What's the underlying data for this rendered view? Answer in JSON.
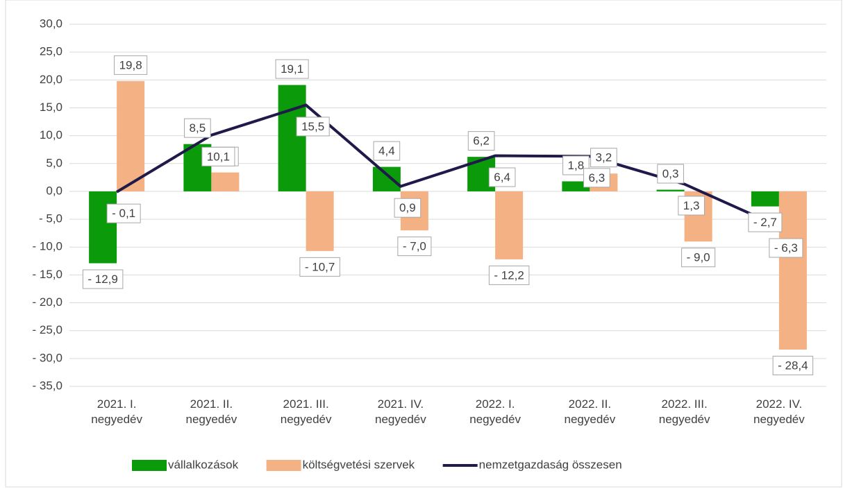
{
  "chart_data": {
    "type": "bar",
    "categories": [
      "2021. I. negyedév",
      "2021. II. negyedév",
      "2021. III. negyedév",
      "2021. IV. negyedév",
      "2022. I. negyedév",
      "2022. II. negyedév",
      "2022. III. negyedév",
      "2022. IV. negyedév"
    ],
    "series": [
      {
        "name": "vállalkozások",
        "type": "bar",
        "color": "#0a9a0a",
        "values": [
          -12.9,
          8.5,
          19.1,
          4.4,
          6.2,
          1.8,
          0.3,
          -2.7
        ],
        "value_labels": [
          "- 12,9",
          "8,5",
          "19,1",
          "4,4",
          "6,2",
          "1,8",
          "0,3",
          "- 2,7"
        ]
      },
      {
        "name": "költségvetési szervek",
        "type": "bar",
        "color": "#f4b183",
        "values": [
          19.8,
          3.4,
          -10.7,
          -7.0,
          -12.2,
          3.2,
          -9.0,
          -28.4
        ],
        "value_labels": [
          "19,8",
          "3,4",
          "- 10,7",
          "- 7,0",
          "- 12,2",
          "3,2",
          "- 9,0",
          "- 28,4"
        ]
      },
      {
        "name": "nemzetgazdaság összesen",
        "type": "line",
        "color": "#1f1a4a",
        "values": [
          -0.1,
          10.1,
          15.5,
          0.9,
          6.4,
          6.3,
          1.3,
          -6.3
        ],
        "value_labels": [
          "- 0,1",
          "10,1",
          "15,5",
          "0,9",
          "6,4",
          "6,3",
          "1,3",
          "- 6,3"
        ]
      }
    ],
    "ylim": [
      -35,
      30
    ],
    "yticks": [
      {
        "value": -35,
        "label": "- 35,0"
      },
      {
        "value": -30,
        "label": "- 30,0"
      },
      {
        "value": -25,
        "label": "- 25,0"
      },
      {
        "value": -20,
        "label": "- 20,0"
      },
      {
        "value": -15,
        "label": "- 15,0"
      },
      {
        "value": -10,
        "label": "- 10,0"
      },
      {
        "value": -5,
        "label": "- 5,0"
      },
      {
        "value": 0,
        "label": "0,0"
      },
      {
        "value": 5,
        "label": "5,0"
      },
      {
        "value": 10,
        "label": "10,0"
      },
      {
        "value": 15,
        "label": "15,0"
      },
      {
        "value": 20,
        "label": "20,0"
      },
      {
        "value": 25,
        "label": "25,0"
      },
      {
        "value": 30,
        "label": "30,0"
      }
    ],
    "grid": true,
    "legend": "bottom"
  }
}
